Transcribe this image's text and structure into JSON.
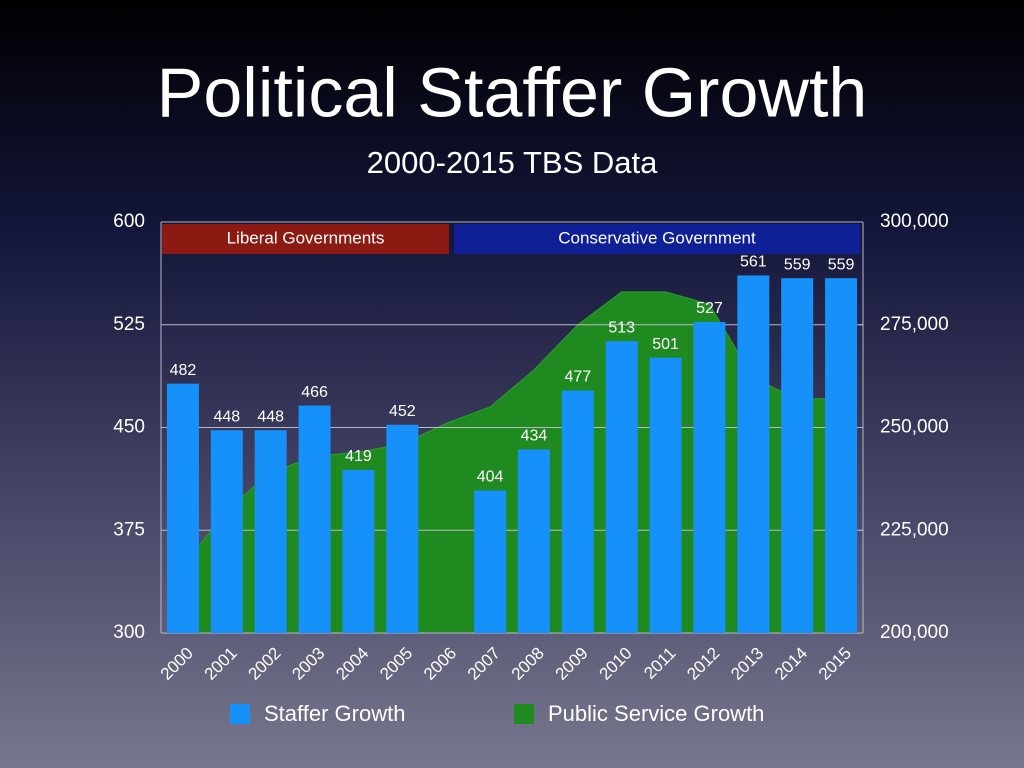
{
  "chart_data": {
    "type": "bar",
    "title": "Political Staffer Growth",
    "subtitle": "2000-2015 TBS Data",
    "categories": [
      "2000",
      "2001",
      "2002",
      "2003",
      "2004",
      "2005",
      "2006",
      "2007",
      "2008",
      "2009",
      "2010",
      "2011",
      "2012",
      "2013",
      "2014",
      "2015"
    ],
    "series": [
      {
        "name": "Staffer Growth",
        "color": "#1791fa",
        "type": "bar",
        "values": [
          482,
          448,
          448,
          466,
          419,
          452,
          null,
          404,
          434,
          477,
          513,
          501,
          527,
          561,
          559,
          559
        ]
      },
      {
        "name": "Public Service Growth",
        "color": "#1f8a1f",
        "type": "area",
        "axis": "y2",
        "values": [
          216000,
          230000,
          239000,
          243000,
          244000,
          246000,
          251000,
          255000,
          264000,
          275000,
          283000,
          283000,
          280000,
          262000,
          257000,
          257000
        ]
      }
    ],
    "ylim": [
      300,
      600
    ],
    "yticks": [
      300,
      375,
      450,
      525,
      600
    ],
    "y2lim": [
      200000,
      300000
    ],
    "y2ticks": [
      {
        "value": 200000,
        "label": "200,000"
      },
      {
        "value": 225000,
        "label": "225,000"
      },
      {
        "value": 250000,
        "label": "250,000"
      },
      {
        "value": 275000,
        "label": "275,000"
      },
      {
        "value": 300000,
        "label": "300,000"
      }
    ],
    "grid": true,
    "annotations": [
      {
        "text": "Liberal Governments",
        "color": "#8b1a12"
      },
      {
        "text": "Conservative Government",
        "color": "#0f1f96"
      }
    ]
  }
}
